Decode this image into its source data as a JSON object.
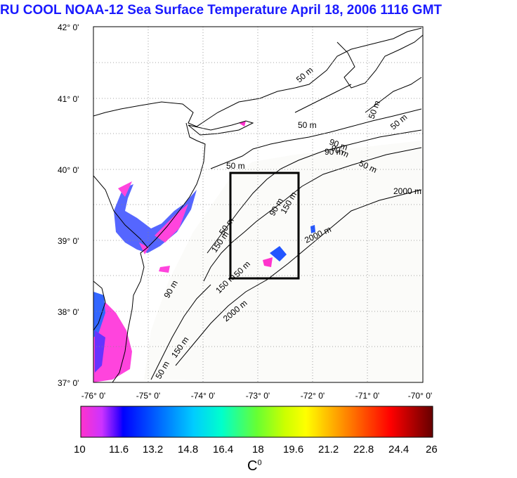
{
  "title": "RU COOL  NOAA-12 Sea Surface Temperature April 18, 2006 1116 GMT",
  "map": {
    "lat_labels": [
      "42° 0'",
      "41° 0'",
      "40° 0'",
      "39° 0'",
      "38° 0'",
      "37° 0'"
    ],
    "lon_labels": [
      "-76° 0'",
      "-75° 0'",
      "-74° 0'",
      "-73° 0'",
      "-72° 0'",
      "-71° 0'",
      "-70° 0'"
    ],
    "lat_range": [
      37,
      42
    ],
    "lon_range": [
      -76,
      -70
    ],
    "grid": true,
    "contour_labels": [
      "50 m",
      "50 m",
      "50 m",
      "50 m",
      "50 m",
      "90 m",
      "90 m",
      "50 m",
      "150 m",
      "90 m",
      "150 m",
      "2000 m",
      "2000 m",
      "2000 m",
      "90 m",
      "50 m",
      "150 m",
      "50 m",
      "50 m",
      "150 m",
      "90 m"
    ],
    "study_box": {
      "lon_min": -73.4,
      "lon_max": -72.3,
      "lat_min": 38.5,
      "lat_max": 40.0
    }
  },
  "colorbar": {
    "tick_labels": [
      "10",
      "11.6",
      "13.2",
      "14.8",
      "16.4",
      "18",
      "19.6",
      "21.2",
      "22.8",
      "24.4",
      "26"
    ],
    "min": 10,
    "max": 26,
    "unit_label": "C",
    "unit_sup": "0",
    "colors": [
      "#ff33cc",
      "#cc33ff",
      "#0000ff",
      "#0066ff",
      "#00ccff",
      "#00ffcc",
      "#66ff33",
      "#ccff00",
      "#ffff00",
      "#ffaa00",
      "#ff5500",
      "#ff0000",
      "#aa0000",
      "#660000"
    ]
  }
}
